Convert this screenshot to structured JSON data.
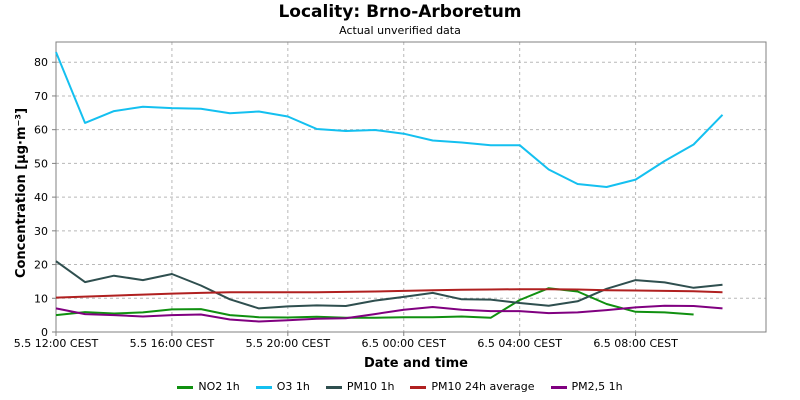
{
  "chart_data": {
    "type": "line",
    "title": "Locality: Brno-Arboretum",
    "subtitle": "Actual unverified data",
    "xlabel": "Date and time",
    "ylabel": "Concentration [µg·m⁻³]",
    "ylim": [
      0,
      86
    ],
    "yticks": [
      0,
      10,
      20,
      30,
      40,
      50,
      60,
      70,
      80
    ],
    "xlim": [
      0,
      24.5
    ],
    "xticks": [
      {
        "x": 0,
        "label": "5.5 12:00 CEST"
      },
      {
        "x": 4,
        "label": "5.5 16:00 CEST"
      },
      {
        "x": 8,
        "label": "5.5 20:00 CEST"
      },
      {
        "x": 12,
        "label": "6.5 00:00 CEST"
      },
      {
        "x": 16,
        "label": "6.5 04:00 CEST"
      },
      {
        "x": 20,
        "label": "6.5 08:00 CEST"
      }
    ],
    "grid": true,
    "legend_position": "bottom",
    "x": [
      0,
      1,
      2,
      3,
      4,
      5,
      6,
      7,
      8,
      9,
      10,
      11,
      12,
      13,
      14,
      15,
      16,
      17,
      18,
      19,
      20,
      21,
      22,
      23
    ],
    "series": [
      {
        "name": "NO2 1h",
        "color": "#109010",
        "values": [
          5,
          5.9,
          5.5,
          5.8,
          6.7,
          6.8,
          5,
          4.4,
          4.3,
          4.5,
          4.2,
          4.2,
          4.4,
          4.4,
          4.6,
          4.2,
          9.5,
          13,
          12,
          8.3,
          6,
          5.8,
          5.2,
          null
        ]
      },
      {
        "name": "O3 1h",
        "color": "#14c0f0",
        "values": [
          83,
          62,
          65.5,
          66.8,
          66.4,
          66.2,
          64.9,
          65.4,
          63.9,
          60.2,
          59.6,
          59.9,
          58.8,
          56.8,
          56.2,
          55.4,
          55.4,
          48.2,
          43.9,
          43,
          45.2,
          50.7,
          55.6,
          64.4
        ]
      },
      {
        "name": "PM10 1h",
        "color": "#2f4f4f",
        "values": [
          21,
          14.8,
          16.7,
          15.4,
          17.2,
          13.8,
          9.7,
          7,
          7.6,
          7.9,
          7.7,
          9.3,
          10.4,
          11.6,
          9.7,
          9.6,
          8.6,
          7.8,
          9.1,
          12.8,
          15.4,
          14.7,
          13.1,
          14
        ]
      },
      {
        "name": "PM10 24h average",
        "color": "#b02020",
        "values": [
          10.2,
          10.5,
          10.8,
          11.1,
          11.4,
          11.6,
          11.8,
          11.8,
          11.8,
          11.8,
          11.9,
          12,
          12.2,
          12.4,
          12.5,
          12.6,
          12.7,
          12.7,
          12.6,
          12.4,
          12.3,
          12.2,
          12.1,
          11.8
        ]
      },
      {
        "name": "PM2,5 1h",
        "color": "#800080",
        "values": [
          7,
          5.3,
          5,
          4.6,
          5,
          5.2,
          3.7,
          3.1,
          3.5,
          3.9,
          4.1,
          5.3,
          6.6,
          7.4,
          6.6,
          6.2,
          6.2,
          5.6,
          5.8,
          6.5,
          7.3,
          7.8,
          7.7,
          7
        ]
      }
    ]
  }
}
